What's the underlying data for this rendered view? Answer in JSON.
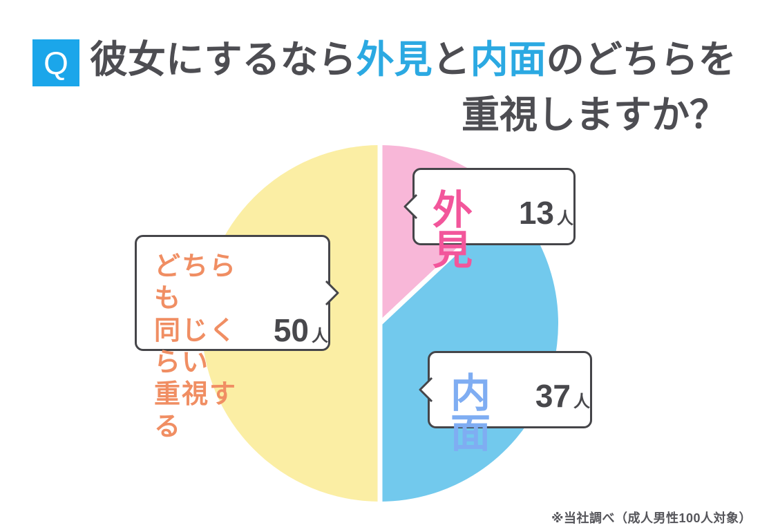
{
  "header": {
    "q_label": "Q",
    "line1_parts": [
      {
        "text": "彼女にするなら",
        "accent": false
      },
      {
        "text": "外見",
        "accent": true
      },
      {
        "text": "と",
        "accent": false
      },
      {
        "text": "内面",
        "accent": true
      },
      {
        "text": "のどちらを",
        "accent": false
      }
    ],
    "line2": "重視しますか？"
  },
  "chart_data": {
    "type": "pie",
    "title": "彼女にするなら外見と内面のどちらを重視しますか？",
    "unit": "人",
    "total": 100,
    "start_angle_deg": 0,
    "direction": "clockwise",
    "legend_position": "callout-bubbles",
    "separator_color": "#FFFFFF",
    "slices": [
      {
        "key": "gaikan",
        "label": "外見",
        "value": 13,
        "color": "#F8B7D8"
      },
      {
        "key": "naimen",
        "label": "内面",
        "value": 37,
        "color": "#72C9ED"
      },
      {
        "key": "dochiramo",
        "label": "どちらも同じくらい重視する",
        "value": 50,
        "color": "#FBEEA4"
      }
    ]
  },
  "bubbles": {
    "gaikan": {
      "name": "外見",
      "value": "13",
      "unit": "人"
    },
    "naimen": {
      "name": "内面",
      "value": "37",
      "unit": "人"
    },
    "dochiramo": {
      "lines": [
        "どちらも",
        "同じくらい",
        "重視する"
      ],
      "value": "50",
      "unit": "人"
    }
  },
  "footnote": "※当社調べ（成人男性100人対象）",
  "colors": {
    "accent_blue": "#1BA6EA",
    "accent_blue_text": "#2BA9E2",
    "title_text": "#4D4D52",
    "number_text": "#48484C",
    "bubble_border": "#454549",
    "pink_label": "#F2569B",
    "blue_label": "#7FADF2",
    "orange_label": "#F08E63",
    "footnote_text": "#55555A"
  }
}
